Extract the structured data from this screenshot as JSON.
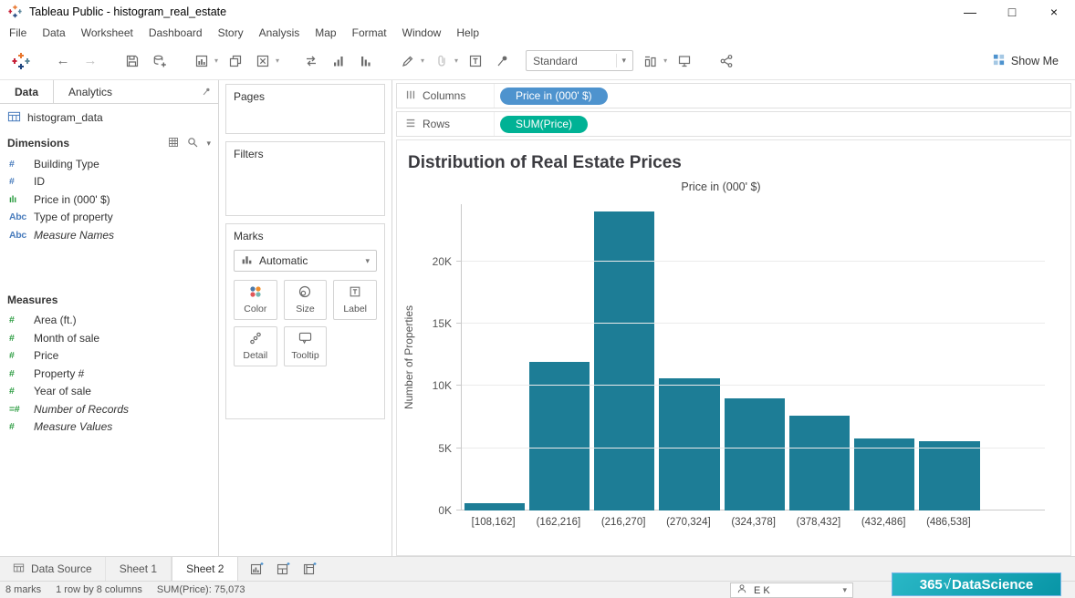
{
  "window": {
    "title": "Tableau Public - histogram_real_estate",
    "controls": {
      "minimize": "—",
      "maximize": "□",
      "close": "×"
    }
  },
  "menu": {
    "items": [
      "File",
      "Data",
      "Worksheet",
      "Dashboard",
      "Story",
      "Analysis",
      "Map",
      "Format",
      "Window",
      "Help"
    ]
  },
  "toolbar": {
    "fit_mode": "Standard",
    "show_me_label": "Show Me"
  },
  "sidebar": {
    "tabs": {
      "data": "Data",
      "analytics": "Analytics"
    },
    "data_source": "histogram_data",
    "dimensions": {
      "header": "Dimensions",
      "items": [
        {
          "label": "Building Type",
          "icon": "number-icon",
          "icon_glyph": "#"
        },
        {
          "label": "ID",
          "icon": "number-icon",
          "icon_glyph": "#"
        },
        {
          "label": "Price in (000' $)",
          "icon": "histogram-bin-icon",
          "icon_glyph": "ılı"
        },
        {
          "label": "Type of property",
          "icon": "abc-icon",
          "icon_glyph": "Abc"
        },
        {
          "label": "Measure Names",
          "icon": "abc-icon",
          "icon_glyph": "Abc"
        }
      ]
    },
    "measures": {
      "header": "Measures",
      "items": [
        {
          "label": "Area (ft.)",
          "icon": "number-icon",
          "icon_glyph": "#"
        },
        {
          "label": "Month of sale",
          "icon": "number-icon",
          "icon_glyph": "#"
        },
        {
          "label": "Price",
          "icon": "number-icon",
          "icon_glyph": "#"
        },
        {
          "label": "Property #",
          "icon": "number-icon",
          "icon_glyph": "#"
        },
        {
          "label": "Year of sale",
          "icon": "number-icon",
          "icon_glyph": "#"
        },
        {
          "label": "Number of Records",
          "icon": "calculated-number-icon",
          "icon_glyph": "=#"
        },
        {
          "label": "Measure Values",
          "icon": "number-icon",
          "icon_glyph": "#"
        }
      ]
    }
  },
  "cards": {
    "pages": {
      "header": "Pages"
    },
    "filters": {
      "header": "Filters"
    },
    "marks": {
      "header": "Marks",
      "mark_type": "Automatic",
      "buttons": [
        {
          "label": "Color",
          "icon": "color-icon"
        },
        {
          "label": "Size",
          "icon": "size-icon"
        },
        {
          "label": "Label",
          "icon": "label-icon"
        },
        {
          "label": "Detail",
          "icon": "detail-icon"
        },
        {
          "label": "Tooltip",
          "icon": "tooltip-icon"
        }
      ]
    }
  },
  "shelves": {
    "columns": {
      "label": "Columns",
      "pill": {
        "text": "Price in (000' $)",
        "color": "#4e93ce"
      }
    },
    "rows": {
      "label": "Rows",
      "pill": {
        "text": "SUM(Price)",
        "color": "#00b295"
      }
    }
  },
  "chart_data": {
    "type": "bar",
    "title": "Distribution of Real Estate Prices",
    "column_field_label": "Price in (000' $)",
    "xlabel": "",
    "ylabel": "Number of Properties",
    "categories": [
      "[108,162]",
      "(162,216]",
      "(216,270]",
      "(270,324]",
      "(324,378]",
      "(378,432]",
      "(432,486]",
      "(486,538]"
    ],
    "values": [
      573,
      11900,
      24000,
      10600,
      9000,
      7600,
      5800,
      5600
    ],
    "y_ticks": [
      {
        "label": "0K",
        "value": 0
      },
      {
        "label": "5K",
        "value": 5000
      },
      {
        "label": "10K",
        "value": 10000
      },
      {
        "label": "15K",
        "value": 15000
      },
      {
        "label": "20K",
        "value": 20000
      }
    ],
    "ylim": [
      0,
      24600
    ],
    "bar_color": "#1d7d96",
    "grid": "horizontal",
    "legend": "none"
  },
  "sheet_bar": {
    "data_source_label": "Data Source",
    "tabs": [
      {
        "label": "Sheet 1",
        "active": false
      },
      {
        "label": "Sheet 2",
        "active": true
      }
    ]
  },
  "status_bar": {
    "marks_count": "8 marks",
    "grid_size": "1 row by 8 columns",
    "aggregate": "SUM(Price): 75,073",
    "user_initials": "E K"
  },
  "branding": {
    "prefix": "365",
    "mark": "√",
    "name": "DataScience"
  }
}
